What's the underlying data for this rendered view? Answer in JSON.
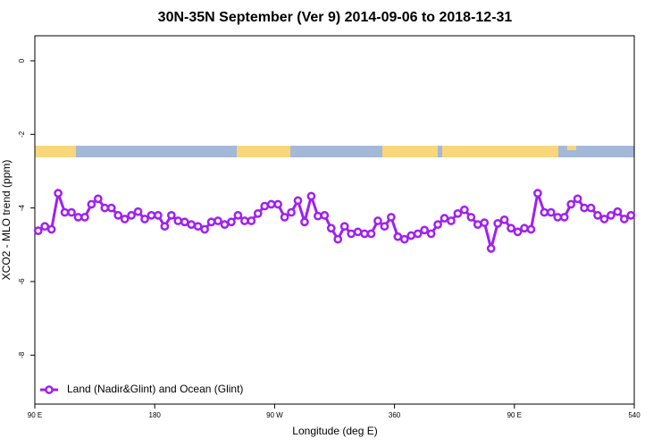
{
  "chart_data": {
    "type": "line",
    "title": "30N-35N September (Ver 9)   2014-09-06 to 2018-12-31",
    "xlabel": "Longitude (deg E)",
    "ylabel": "XCO2 - MLO trend (ppm)",
    "x": [
      92.5,
      97.5,
      102.5,
      107.5,
      112.5,
      117.5,
      122.5,
      127.5,
      132.5,
      137.5,
      142.5,
      147.5,
      152.5,
      157.5,
      162.5,
      167.5,
      172.5,
      177.5,
      182.5,
      187.5,
      192.5,
      197.5,
      202.5,
      207.5,
      212.5,
      217.5,
      222.5,
      227.5,
      232.5,
      237.5,
      242.5,
      247.5,
      252.5,
      257.5,
      262.5,
      267.5,
      272.5,
      277.5,
      282.5,
      287.5,
      292.5,
      297.5,
      302.5,
      307.5,
      312.5,
      317.5,
      322.5,
      327.5,
      332.5,
      337.5,
      342.5,
      347.5,
      352.5,
      357.5,
      362.5,
      367.5,
      372.5,
      377.5,
      382.5,
      387.5,
      392.5,
      397.5,
      402.5,
      407.5,
      412.5,
      417.5,
      422.5,
      427.5,
      432.5,
      437.5,
      442.5,
      447.5,
      452.5,
      457.5,
      462.5,
      467.5,
      472.5,
      477.5,
      482.5,
      487.5,
      492.5,
      497.5,
      502.5,
      507.5,
      512.5,
      517.5,
      522.5,
      527.5,
      532.5,
      537.5
    ],
    "series": [
      {
        "name": "Land (Nadir&Glint) and Ocean (Glint)",
        "color": "#a020f0",
        "values": [
          -4.62,
          -4.5,
          -4.58,
          -3.6,
          -4.12,
          -4.12,
          -4.25,
          -4.25,
          -3.9,
          -3.75,
          -4.0,
          -4.0,
          -4.2,
          -4.3,
          -4.2,
          -4.1,
          -4.3,
          -4.2,
          -4.2,
          -4.5,
          -4.2,
          -4.35,
          -4.38,
          -4.45,
          -4.5,
          -4.58,
          -4.38,
          -4.35,
          -4.45,
          -4.38,
          -4.2,
          -4.35,
          -4.35,
          -4.15,
          -3.95,
          -3.9,
          -3.9,
          -4.25,
          -4.12,
          -3.8,
          -4.38,
          -3.68,
          -4.22,
          -4.2,
          -4.55,
          -4.85,
          -4.5,
          -4.7,
          -4.65,
          -4.7,
          -4.7,
          -4.35,
          -4.5,
          -4.25,
          -4.78,
          -4.85,
          -4.75,
          -4.7,
          -4.6,
          -4.7,
          -4.45,
          -4.28,
          -4.35,
          -4.15,
          -4.05,
          -4.25,
          -4.45,
          -4.4,
          -5.1,
          -4.42,
          -4.32,
          -4.55,
          -4.65,
          -4.55,
          -4.58,
          -3.6,
          -4.12,
          -4.12,
          -4.25,
          -4.25,
          -3.9,
          -3.75,
          -4.0,
          -4.0,
          -4.2,
          -4.3,
          -4.2,
          -4.1,
          -4.3,
          -4.2
        ]
      }
    ],
    "xlim": [
      90,
      540
    ],
    "xticks": [
      {
        "value": 90,
        "label": "90 E"
      },
      180,
      {
        "value": 270,
        "label": "90 W"
      },
      360,
      {
        "value": 450,
        "label": "90 E"
      },
      540
    ],
    "ylim": [
      -9.33,
      0.68
    ],
    "yticks": [
      0,
      -2,
      -4,
      -6,
      -8
    ],
    "legend": "bottom-left"
  }
}
